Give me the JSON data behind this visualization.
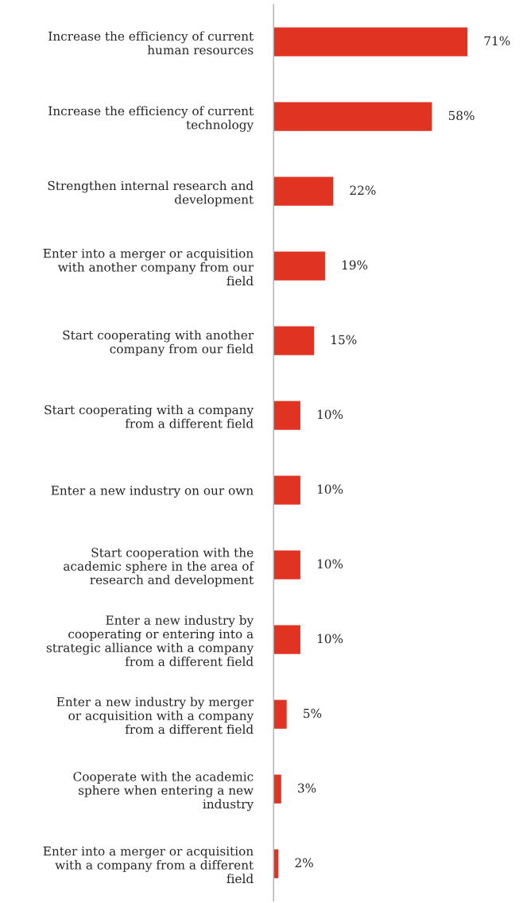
{
  "chart_data": {
    "type": "bar",
    "orientation": "horizontal",
    "categories": [
      "Increase the efficiency of current\nhuman resources",
      "Increase the efficiency of current\ntechnology",
      "Strengthen internal research and\ndevelopment",
      "Enter into a merger or acquisition\nwith another company from our\nfield",
      "Start cooperating with another\ncompany from our field",
      "Start cooperating with a company\nfrom a different field",
      "Enter a new industry on our own",
      "Start cooperation with the\nacademic sphere in the area of\nresearch and development",
      "Enter a new industry by\ncooperating or entering into a\nstrategic alliance with a company\nfrom a different field",
      "Enter a new industry by merger\nor acquisition with a company\nfrom a different field",
      "Cooperate with the academic\nsphere when entering a new\nindustry",
      "Enter into a merger or acquisition\nwith a company from a different\nfield"
    ],
    "values": [
      71,
      58,
      22,
      19,
      15,
      10,
      10,
      10,
      10,
      5,
      3,
      2
    ],
    "value_labels": [
      "71%",
      "58%",
      "22%",
      "19%",
      "15%",
      "10%",
      "10%",
      "10%",
      "10%",
      "5%",
      "3%",
      "2%"
    ],
    "color": "#e03322",
    "grid": false,
    "legend": false
  }
}
